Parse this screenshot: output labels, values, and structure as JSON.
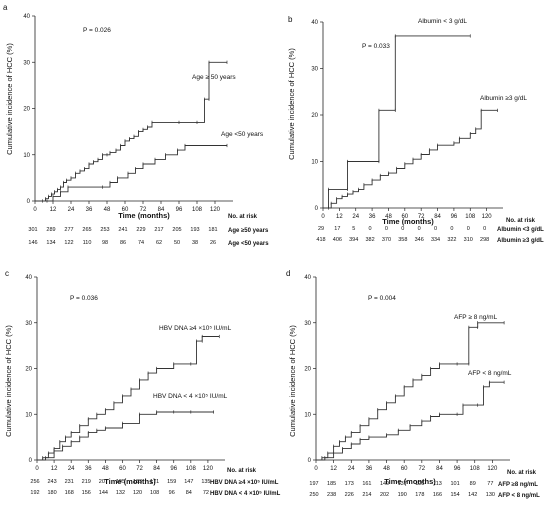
{
  "chart_data": [
    {
      "type": "line",
      "id": "a",
      "panel_letter": "a",
      "pvalue": "P = 0.026",
      "ylabel": "Cumulative incidence of HCC (%)",
      "xlabel": "Time (months)",
      "xlim": [
        0,
        132
      ],
      "ylim": [
        0,
        40
      ],
      "xticks": [
        0,
        12,
        24,
        36,
        48,
        60,
        72,
        84,
        96,
        108,
        120
      ],
      "yticks": [
        0,
        10,
        20,
        30,
        40
      ],
      "risk_header": "No. at risk",
      "series": [
        {
          "name": "Age ≥ 50 years",
          "risk_label": "Age ≥50 years",
          "risk": [
            "301",
            "289",
            "277",
            "265",
            "253",
            "241",
            "229",
            "217",
            "205",
            "193",
            "181"
          ],
          "color": "#333333",
          "points": [
            [
              0,
              0
            ],
            [
              5,
              0
            ],
            [
              7,
              0.5
            ],
            [
              9,
              1
            ],
            [
              11,
              1.5
            ],
            [
              13,
              2
            ],
            [
              15,
              2.5
            ],
            [
              17,
              3
            ],
            [
              19,
              4
            ],
            [
              21,
              4.5
            ],
            [
              24,
              5
            ],
            [
              27,
              6
            ],
            [
              30,
              6.5
            ],
            [
              33,
              7
            ],
            [
              36,
              8
            ],
            [
              39,
              8.5
            ],
            [
              42,
              9
            ],
            [
              45,
              10
            ],
            [
              48,
              10
            ],
            [
              50,
              10.5
            ],
            [
              54,
              11
            ],
            [
              57,
              12
            ],
            [
              60,
              13
            ],
            [
              63,
              13.5
            ],
            [
              66,
              14
            ],
            [
              69,
              15
            ],
            [
              72,
              15.5
            ],
            [
              75,
              16
            ],
            [
              78,
              17
            ],
            [
              96,
              17
            ],
            [
              108,
              17
            ],
            [
              113,
              22
            ],
            [
              116,
              22
            ],
            [
              116,
              30
            ],
            [
              128,
              30
            ]
          ]
        },
        {
          "name": "Age <50 years",
          "risk_label": "Age <50 years",
          "risk": [
            "146",
            "134",
            "122",
            "110",
            "98",
            "86",
            "74",
            "62",
            "50",
            "38",
            "26"
          ],
          "color": "#333333",
          "points": [
            [
              0,
              0
            ],
            [
              8,
              0
            ],
            [
              12,
              1
            ],
            [
              17,
              2
            ],
            [
              22,
              3
            ],
            [
              45,
              3
            ],
            [
              50,
              4
            ],
            [
              55,
              5
            ],
            [
              62,
              6
            ],
            [
              67,
              7
            ],
            [
              72,
              8
            ],
            [
              80,
              9
            ],
            [
              87,
              10
            ],
            [
              95,
              11
            ],
            [
              100,
              12
            ],
            [
              128,
              12
            ]
          ]
        }
      ]
    },
    {
      "type": "line",
      "id": "b",
      "panel_letter": "b",
      "pvalue": "P = 0.033",
      "ylabel": "Cumulative incidence of HCC (%)",
      "xlabel": "Time (months)",
      "xlim": [
        0,
        132
      ],
      "ylim": [
        0,
        40
      ],
      "xticks": [
        0,
        12,
        24,
        36,
        48,
        60,
        72,
        84,
        96,
        108,
        120
      ],
      "yticks": [
        0,
        10,
        20,
        30,
        40
      ],
      "risk_header": "No. at risk",
      "series": [
        {
          "name": "Albumin < 3 g/dL",
          "risk_label": "Albumin <3 g/dL",
          "risk": [
            "29",
            "17",
            "5",
            "0",
            "0",
            "0",
            "0",
            "0",
            "0",
            "0",
            "0"
          ],
          "color": "#333333",
          "points": [
            [
              0,
              0
            ],
            [
              4,
              0
            ],
            [
              4,
              4
            ],
            [
              18,
              4
            ],
            [
              18,
              10
            ],
            [
              41,
              10
            ],
            [
              41,
              21
            ],
            [
              53,
              21
            ],
            [
              53,
              37
            ],
            [
              108,
              37
            ]
          ]
        },
        {
          "name": "Albumin ≥3 g/dL",
          "risk_label": "Albumin ≥3 g/dL",
          "risk": [
            "418",
            "406",
            "394",
            "382",
            "370",
            "358",
            "346",
            "334",
            "322",
            "310",
            "298"
          ],
          "color": "#333333",
          "points": [
            [
              0,
              0
            ],
            [
              6,
              1
            ],
            [
              10,
              2
            ],
            [
              14,
              2.5
            ],
            [
              18,
              3
            ],
            [
              22,
              3.5
            ],
            [
              26,
              4
            ],
            [
              30,
              5
            ],
            [
              36,
              6
            ],
            [
              42,
              7
            ],
            [
              48,
              7.5
            ],
            [
              54,
              8.5
            ],
            [
              60,
              9.5
            ],
            [
              66,
              10.5
            ],
            [
              72,
              11.5
            ],
            [
              78,
              12.5
            ],
            [
              84,
              13.5
            ],
            [
              96,
              14
            ],
            [
              100,
              15
            ],
            [
              108,
              16
            ],
            [
              112,
              17
            ],
            [
              116,
              21
            ],
            [
              128,
              21
            ]
          ]
        }
      ]
    },
    {
      "type": "line",
      "id": "c",
      "panel_letter": "c",
      "pvalue": "P = 0.036",
      "ylabel": "Cumulative incidence of HCC (%)",
      "xlabel": "Time (months)",
      "xlim": [
        0,
        132
      ],
      "ylim": [
        0,
        40
      ],
      "xticks": [
        0,
        12,
        24,
        36,
        48,
        60,
        72,
        84,
        96,
        108,
        120
      ],
      "yticks": [
        0,
        10,
        20,
        30,
        40
      ],
      "risk_header": "No. at risk",
      "series": [
        {
          "name": "HBV DNA ≥4 ×10⁵ IU/mL",
          "risk_label": "HBV DNA ≥4 ×10⁵ IU/mL",
          "risk": [
            "256",
            "243",
            "231",
            "219",
            "207",
            "195",
            "183",
            "171",
            "159",
            "147",
            "135"
          ],
          "color": "#333333",
          "points": [
            [
              0,
              0
            ],
            [
              4,
              0.5
            ],
            [
              8,
              1.5
            ],
            [
              12,
              2.5
            ],
            [
              16,
              4
            ],
            [
              20,
              5
            ],
            [
              24,
              6
            ],
            [
              30,
              7.5
            ],
            [
              36,
              9
            ],
            [
              42,
              10
            ],
            [
              48,
              11
            ],
            [
              54,
              12.5
            ],
            [
              60,
              14
            ],
            [
              66,
              15.5
            ],
            [
              72,
              17.5
            ],
            [
              78,
              19
            ],
            [
              84,
              20
            ],
            [
              96,
              21
            ],
            [
              108,
              21
            ],
            [
              112,
              26
            ],
            [
              116,
              26
            ],
            [
              116,
              27
            ],
            [
              128,
              27
            ]
          ]
        },
        {
          "name": "HBV DNA < 4 ×10⁵ IU/mL",
          "risk_label": "HBV DNA < 4 ×10⁵ IU/mL",
          "risk": [
            "192",
            "180",
            "168",
            "156",
            "144",
            "132",
            "120",
            "108",
            "96",
            "84",
            "72"
          ],
          "color": "#333333",
          "points": [
            [
              0,
              0
            ],
            [
              6,
              0.5
            ],
            [
              12,
              2
            ],
            [
              18,
              3
            ],
            [
              24,
              4
            ],
            [
              30,
              5
            ],
            [
              36,
              6
            ],
            [
              42,
              6.5
            ],
            [
              48,
              7
            ],
            [
              60,
              8
            ],
            [
              72,
              10
            ],
            [
              84,
              10.5
            ],
            [
              96,
              10.5
            ],
            [
              108,
              10.5
            ],
            [
              124,
              10.5
            ]
          ]
        }
      ]
    },
    {
      "type": "line",
      "id": "d",
      "panel_letter": "d",
      "pvalue": "P = 0.004",
      "ylabel": "Cumulative incidence of HCC (%)",
      "xlabel": "Time (months)",
      "xlim": [
        0,
        132
      ],
      "ylim": [
        0,
        40
      ],
      "xticks": [
        0,
        12,
        24,
        36,
        48,
        60,
        72,
        84,
        96,
        108,
        120
      ],
      "yticks": [
        0,
        10,
        20,
        30,
        40
      ],
      "risk_header": "No. at risk",
      "series": [
        {
          "name": "AFP ≥ 8 ng/mL",
          "risk_label": "AFP ≥8 ng/mL",
          "risk": [
            "197",
            "185",
            "173",
            "161",
            "149",
            "137",
            "125",
            "113",
            "101",
            "89",
            "77"
          ],
          "color": "#333333",
          "points": [
            [
              0,
              0
            ],
            [
              4,
              0.5
            ],
            [
              8,
              1.5
            ],
            [
              12,
              3
            ],
            [
              16,
              4
            ],
            [
              20,
              5
            ],
            [
              24,
              6
            ],
            [
              30,
              7.5
            ],
            [
              36,
              9
            ],
            [
              42,
              11
            ],
            [
              48,
              12.5
            ],
            [
              54,
              14
            ],
            [
              60,
              16
            ],
            [
              66,
              17.5
            ],
            [
              72,
              18.5
            ],
            [
              78,
              20
            ],
            [
              84,
              21
            ],
            [
              96,
              21
            ],
            [
              104,
              21
            ],
            [
              104,
              29
            ],
            [
              110,
              29
            ],
            [
              110,
              30
            ],
            [
              128,
              30
            ]
          ]
        },
        {
          "name": "AFP < 8 ng/mL",
          "risk_label": "AFP < 8 ng/mL",
          "risk": [
            "250",
            "238",
            "226",
            "214",
            "202",
            "190",
            "178",
            "166",
            "154",
            "142",
            "130"
          ],
          "color": "#333333",
          "points": [
            [
              0,
              0
            ],
            [
              6,
              0.5
            ],
            [
              12,
              1.5
            ],
            [
              18,
              2.5
            ],
            [
              24,
              3.5
            ],
            [
              30,
              4.5
            ],
            [
              36,
              5
            ],
            [
              48,
              5.5
            ],
            [
              56,
              6.5
            ],
            [
              64,
              7.5
            ],
            [
              72,
              8.5
            ],
            [
              78,
              9.5
            ],
            [
              84,
              10
            ],
            [
              96,
              10
            ],
            [
              100,
              12
            ],
            [
              110,
              12
            ],
            [
              114,
              16
            ],
            [
              118,
              17
            ],
            [
              128,
              17
            ]
          ]
        }
      ]
    }
  ]
}
